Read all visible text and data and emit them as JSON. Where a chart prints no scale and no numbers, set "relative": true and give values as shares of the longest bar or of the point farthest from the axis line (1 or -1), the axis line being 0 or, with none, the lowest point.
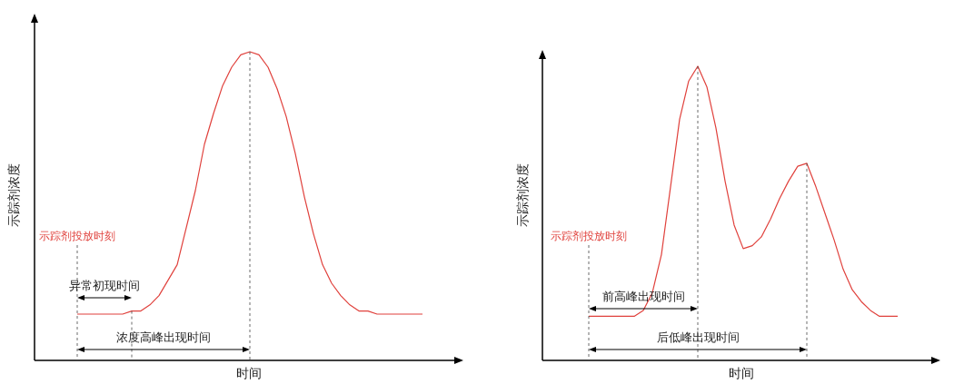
{
  "chart_data": [
    {
      "type": "line",
      "relative": true,
      "xlabel": "时间",
      "ylabel": "示踪剂浓度",
      "categories": [
        null,
        null,
        null,
        null,
        null,
        null,
        null,
        null,
        null,
        null,
        null,
        null,
        null,
        null,
        null,
        null,
        null,
        null,
        null,
        null,
        null,
        null,
        null,
        null,
        null,
        null,
        null,
        null,
        null,
        null,
        null,
        null,
        null,
        null,
        null,
        null,
        null,
        null,
        null
      ],
      "series": [
        {
          "color": "#e0413c",
          "values": [
            0.15,
            0.15,
            0.15,
            0.15,
            0.15,
            0.15,
            0.16,
            0.16,
            0.18,
            0.21,
            0.26,
            0.31,
            0.43,
            0.55,
            0.7,
            0.8,
            0.89,
            0.95,
            0.99,
            1,
            0.99,
            0.95,
            0.88,
            0.79,
            0.67,
            0.53,
            0.41,
            0.31,
            0.25,
            0.21,
            0.18,
            0.16,
            0.16,
            0.15,
            0.15,
            0.15,
            0.15,
            0.15,
            0.15
          ]
        }
      ],
      "annotations": [
        "示踪剂投放时刻",
        "异常初现时间",
        "浓度高峰出现时间"
      ]
    },
    {
      "type": "line",
      "relative": true,
      "xlabel": "时间",
      "ylabel": "示踪剂浓度",
      "categories": [
        null,
        null,
        null,
        null,
        null,
        null,
        null,
        null,
        null,
        null,
        null,
        null,
        null,
        null,
        null,
        null,
        null,
        null,
        null,
        null,
        null,
        null,
        null,
        null,
        null,
        null,
        null,
        null,
        null,
        null,
        null,
        null,
        null,
        null,
        null
      ],
      "series": [
        {
          "color": "#e0413c",
          "values": [
            0.15,
            0.15,
            0.15,
            0.15,
            0.15,
            0.15,
            0.17,
            0.23,
            0.36,
            0.59,
            0.82,
            0.95,
            1,
            0.93,
            0.79,
            0.61,
            0.46,
            0.38,
            0.39,
            0.42,
            0.48,
            0.55,
            0.61,
            0.66,
            0.67,
            0.59,
            0.5,
            0.41,
            0.31,
            0.24,
            0.2,
            0.17,
            0.15,
            0.15,
            0.15
          ]
        }
      ],
      "annotations": [
        "示踪剂投放时刻",
        "前高峰出现时间",
        "后低峰出现时间"
      ]
    }
  ]
}
